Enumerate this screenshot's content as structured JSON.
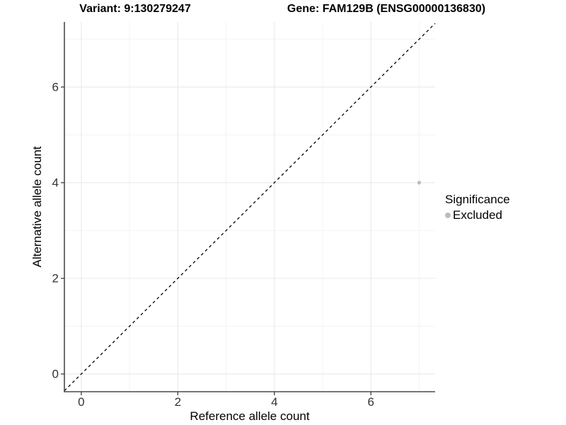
{
  "figure": {
    "title_left": "Variant: 9:130279247",
    "title_right": "Gene: FAM129B (ENSG00000136830)"
  },
  "chart_data": {
    "type": "scatter",
    "title": "Variant: 9:130279247   Gene: FAM129B (ENSG00000136830)",
    "xlabel": "Reference allele count",
    "ylabel": "Alternative allele count",
    "xlim": [
      -0.35,
      7.33
    ],
    "ylim": [
      -0.37,
      7.36
    ],
    "x_major_ticks": [
      0,
      2,
      4,
      6
    ],
    "y_major_ticks": [
      0,
      2,
      4,
      6
    ],
    "x_minor_gridlines": [
      1,
      3,
      5,
      7
    ],
    "y_minor_gridlines": [
      1,
      3,
      5,
      7
    ],
    "grid": true,
    "legend_position": "right",
    "series": [
      {
        "name": "Excluded",
        "points": [
          {
            "x": 7,
            "y": 4
          }
        ]
      }
    ],
    "reference_line": {
      "type": "identity",
      "slope": 1,
      "intercept": 0,
      "linestyle": "dashed",
      "color": "#000000"
    },
    "legend": {
      "title": "Significance",
      "items": [
        {
          "label": "Excluded",
          "color": "#bdbdbd",
          "marker": "circle"
        }
      ]
    },
    "colors": {
      "point": "#bdbdbd",
      "grid_major": "#ebebeb",
      "grid_minor": "#f3f3f3",
      "axis_line": "#4a4a4a",
      "tick_label": "#333333",
      "dashed_line": "#000000",
      "background": "#ffffff"
    }
  }
}
